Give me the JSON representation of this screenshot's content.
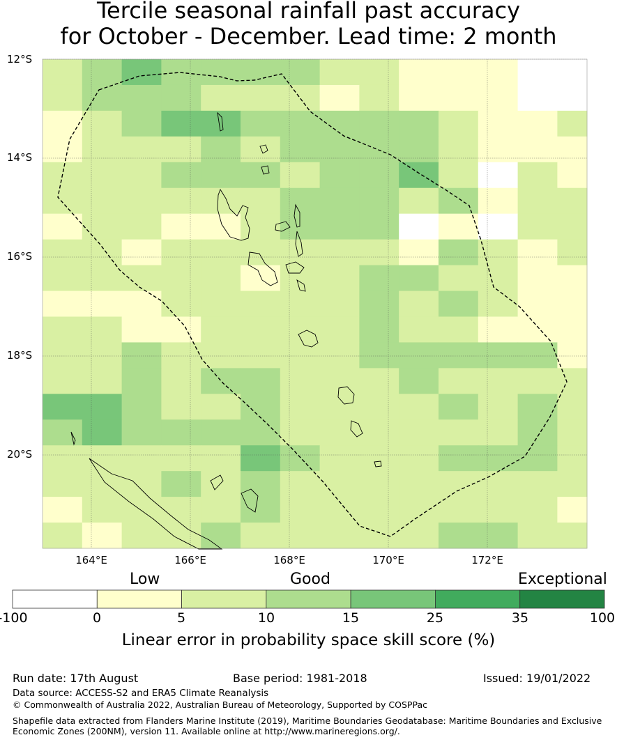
{
  "title": {
    "line1": "Tercile seasonal rainfall past accuracy",
    "line2": "for October - December. Lead time: 2 month"
  },
  "map": {
    "lat_labels": [
      "12°S",
      "14°S",
      "16°S",
      "18°S",
      "20°S"
    ],
    "lon_labels": [
      "164°E",
      "166°E",
      "168°E",
      "170°E",
      "172°E"
    ],
    "grid_levels": [
      [
        2,
        3,
        4,
        3,
        3,
        3,
        3,
        2,
        2,
        1,
        1,
        1,
        0
      ],
      [
        2,
        3,
        3,
        3,
        2,
        2,
        2,
        1,
        2,
        1,
        1,
        1,
        0
      ],
      [
        1,
        2,
        3,
        4,
        4,
        3,
        3,
        3,
        3,
        3,
        2,
        1,
        1,
        2
      ],
      [
        1,
        2,
        2,
        2,
        3,
        2,
        3,
        3,
        3,
        3,
        2,
        1,
        1,
        1
      ],
      [
        2,
        2,
        2,
        3,
        3,
        3,
        2,
        3,
        3,
        4,
        2,
        0,
        2,
        1
      ],
      [
        2,
        2,
        2,
        2,
        2,
        2,
        3,
        3,
        3,
        2,
        3,
        1,
        2,
        2
      ],
      [
        1,
        2,
        2,
        1,
        1,
        2,
        3,
        3,
        3,
        0,
        1,
        0,
        2,
        2
      ],
      [
        2,
        2,
        1,
        2,
        2,
        2,
        2,
        2,
        2,
        1,
        3,
        2,
        1,
        2
      ],
      [
        2,
        2,
        2,
        2,
        2,
        1,
        2,
        2,
        3,
        3,
        2,
        2,
        1,
        1
      ],
      [
        1,
        1,
        1,
        2,
        2,
        2,
        2,
        2,
        3,
        2,
        3,
        2,
        1,
        1
      ],
      [
        2,
        2,
        1,
        1,
        2,
        2,
        2,
        2,
        3,
        2,
        2,
        1,
        1,
        1
      ],
      [
        2,
        2,
        3,
        2,
        2,
        2,
        2,
        2,
        3,
        3,
        3,
        3,
        3,
        1
      ],
      [
        2,
        2,
        3,
        2,
        3,
        3,
        2,
        2,
        2,
        3,
        2,
        2,
        2,
        2
      ],
      [
        4,
        4,
        3,
        2,
        2,
        3,
        2,
        2,
        2,
        2,
        3,
        2,
        3,
        2
      ],
      [
        3,
        4,
        3,
        3,
        3,
        3,
        2,
        2,
        2,
        2,
        2,
        2,
        3,
        2
      ],
      [
        2,
        2,
        2,
        2,
        2,
        4,
        3,
        2,
        2,
        2,
        3,
        3,
        3,
        2
      ],
      [
        2,
        2,
        2,
        3,
        2,
        3,
        2,
        2,
        2,
        2,
        2,
        2,
        2,
        2
      ],
      [
        1,
        2,
        2,
        2,
        2,
        3,
        2,
        2,
        2,
        2,
        2,
        2,
        2,
        1
      ],
      [
        2,
        1,
        2,
        2,
        3,
        2,
        2,
        2,
        2,
        2,
        3,
        3,
        2,
        2
      ]
    ]
  },
  "legend": {
    "categories": [
      "Low",
      "Good",
      "Exceptional"
    ],
    "ticks": [
      "-100",
      "0",
      "5",
      "10",
      "15",
      "25",
      "35",
      "100"
    ],
    "colors": [
      "#ffffff",
      "#ffffcc",
      "#d9f0a3",
      "#addd8e",
      "#78c679",
      "#41ab5d",
      "#238443"
    ],
    "label": "Linear error in probability space skill score (%)"
  },
  "footer": {
    "run_date": "Run date: 17th August",
    "base_period": "Base period: 1981-2018",
    "issued": "Issued: 19/01/2022",
    "data_source": "Data source: ACCESS-S2 and ERA5 Climate Reanalysis",
    "copyright": "© Commonwealth of Australia 2022, Australian Bureau of Meteorology, Supported by COSPPac",
    "shapefile_line1": "Shapefile data extracted from Flanders Marine Institute (2019), Maritime Boundaries Geodatabase: Maritime Boundaries and Exclusive",
    "shapefile_line2": "Economic Zones (200NM), version 11. Available online at http://www.marineregions.org/."
  }
}
